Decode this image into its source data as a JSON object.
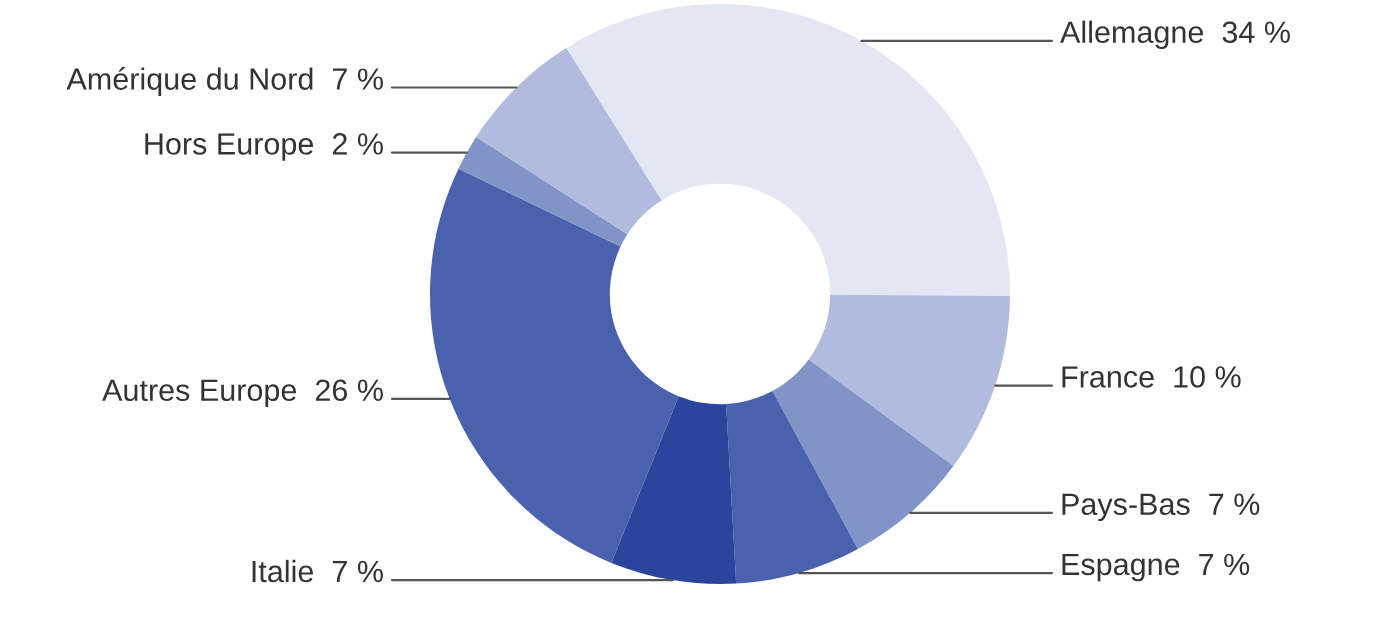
{
  "chart_data": {
    "type": "donut",
    "categories": [
      "Allemagne",
      "France",
      "Pays-Bas",
      "Espagne",
      "Italie",
      "Autres Europe",
      "Hors Europe",
      "Amérique du Nord"
    ],
    "values": [
      34,
      10,
      7,
      7,
      7,
      26,
      2,
      7
    ],
    "value_labels": [
      "34 %",
      "10 %",
      "7 %",
      "7 %",
      "7 %",
      "26 %",
      "2 %",
      "7 %"
    ],
    "colors": [
      "#e4e7f3",
      "#b0bbdd",
      "#8293c8",
      "#4a62ad",
      "#2b449c",
      "#4a62ad",
      "#8293c8",
      "#b0bbdd"
    ]
  }
}
